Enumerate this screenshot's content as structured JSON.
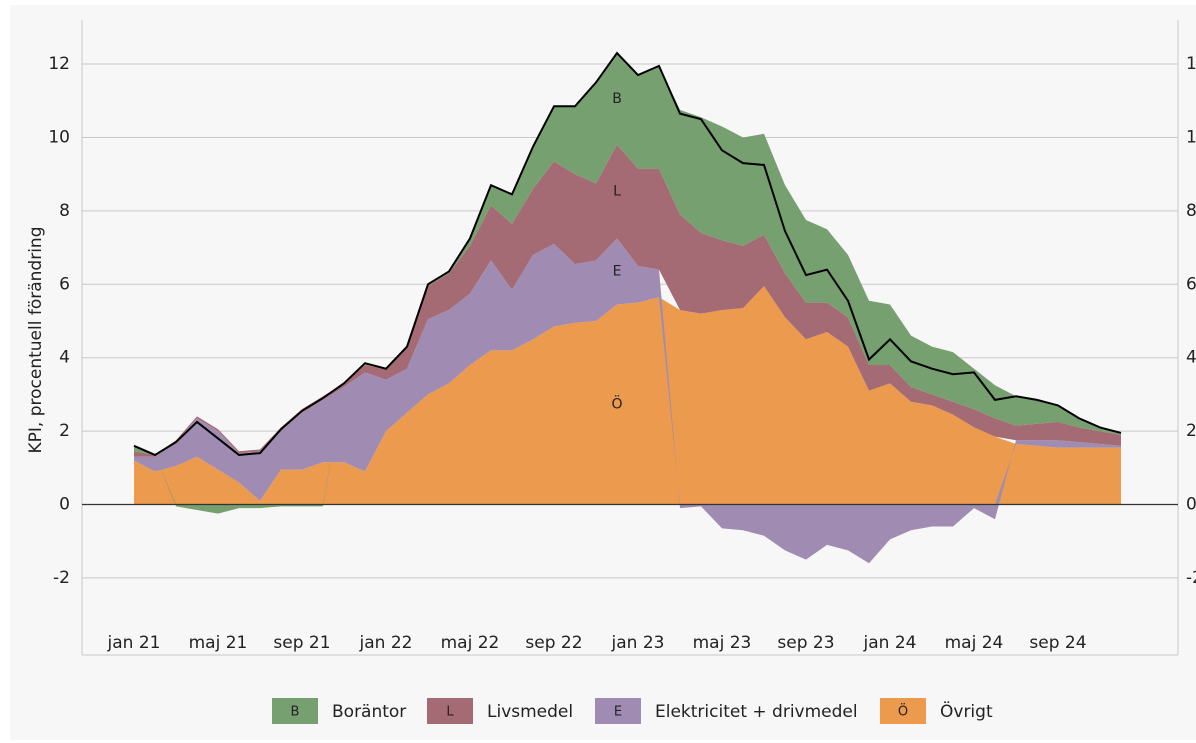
{
  "chart_data": {
    "type": "stacked_area",
    "y_label": "KPI, procentuell förändring",
    "categories": [
      "jan 21",
      null,
      null,
      null,
      "maj 21",
      null,
      null,
      null,
      "sep 21",
      null,
      null,
      null,
      "jan 22",
      null,
      null,
      null,
      "maj 22",
      null,
      null,
      null,
      "sep 22",
      null,
      null,
      null,
      "jan 23",
      null,
      null,
      null,
      "maj 23",
      null,
      null,
      null,
      "sep 23",
      null,
      null,
      null,
      "jan 24",
      null,
      null,
      null,
      "maj 24",
      null,
      null,
      null,
      "sep 24",
      null,
      null,
      null
    ],
    "series": [
      {
        "name": "Boräntor",
        "label": "B",
        "color": "#76a06f",
        "values": [
          0.15,
          0.0,
          -0.05,
          -0.15,
          -0.25,
          -0.1,
          -0.1,
          -0.05,
          -0.05,
          -0.05,
          0.0,
          0.05,
          0.0,
          0.0,
          0.05,
          0.05,
          0.2,
          0.55,
          0.8,
          1.15,
          1.5,
          1.85,
          2.75,
          2.5,
          2.55,
          2.8,
          2.85,
          3.15,
          3.1,
          2.95,
          2.75,
          2.4,
          2.25,
          2.0,
          1.7,
          1.75,
          1.65,
          1.4,
          1.3,
          1.35,
          1.1,
          0.9,
          0.8,
          0.65,
          0.45,
          0.25,
          0.1,
          0.05
        ]
      },
      {
        "name": "Livsmedel",
        "label": "L",
        "color": "#a56b74",
        "values": [
          0.15,
          0.05,
          0.05,
          0.05,
          0.05,
          0.05,
          0.05,
          0.1,
          0.1,
          0.1,
          0.1,
          0.2,
          0.3,
          0.6,
          0.9,
          1.0,
          1.3,
          1.5,
          1.8,
          1.8,
          2.25,
          2.45,
          2.1,
          2.55,
          2.65,
          2.75,
          2.6,
          2.2,
          1.9,
          1.7,
          1.4,
          1.2,
          1.0,
          0.8,
          0.8,
          0.7,
          0.5,
          0.4,
          0.3,
          0.35,
          0.5,
          0.5,
          0.4,
          0.45,
          0.5,
          0.4,
          0.35,
          0.3
        ]
      },
      {
        "name": "Elektricitet + drivmedel",
        "label": "E",
        "color": "#a08cb2",
        "values": [
          0.1,
          0.4,
          0.65,
          1.05,
          1.05,
          0.8,
          1.35,
          1.05,
          1.55,
          1.7,
          2.05,
          2.7,
          1.4,
          1.2,
          2.05,
          2.0,
          1.95,
          2.45,
          1.65,
          2.3,
          2.25,
          1.6,
          1.65,
          1.8,
          1.0,
          0.75,
          -0.1,
          -0.05,
          -0.65,
          -0.7,
          -0.85,
          -1.25,
          -1.5,
          -1.1,
          -1.25,
          -1.6,
          -0.95,
          -0.7,
          -0.6,
          -0.6,
          -0.1,
          -0.4,
          0.1,
          0.15,
          0.2,
          0.15,
          0.1,
          0.05
        ]
      },
      {
        "name": "Övrigt",
        "label": "Ö",
        "color": "#eb9a4e",
        "values": [
          1.2,
          0.9,
          1.05,
          1.3,
          0.95,
          0.6,
          0.1,
          0.95,
          0.95,
          1.15,
          1.15,
          0.9,
          2.0,
          2.5,
          3.0,
          3.3,
          3.8,
          4.2,
          4.2,
          4.5,
          4.85,
          4.95,
          5.0,
          5.45,
          5.5,
          5.65,
          5.3,
          5.2,
          5.3,
          5.35,
          5.95,
          5.1,
          4.5,
          4.7,
          4.3,
          3.1,
          3.3,
          2.8,
          2.7,
          2.45,
          2.1,
          1.85,
          1.65,
          1.6,
          1.55,
          1.55,
          1.55,
          1.55
        ]
      }
    ],
    "line": {
      "color": "#000000",
      "values": [
        1.6,
        1.35,
        1.7,
        2.25,
        1.8,
        1.35,
        1.4,
        2.05,
        2.55,
        2.9,
        3.3,
        3.85,
        3.7,
        4.3,
        6.0,
        6.35,
        7.25,
        8.7,
        8.45,
        9.75,
        10.85,
        10.85,
        11.5,
        12.3,
        11.7,
        11.95,
        10.65,
        10.5,
        9.65,
        9.3,
        9.25,
        7.45,
        6.25,
        6.4,
        5.55,
        3.95,
        4.5,
        3.9,
        3.7,
        3.55,
        3.6,
        2.85,
        2.95,
        2.85,
        2.7,
        2.35,
        2.1,
        1.95
      ]
    },
    "annotation_index": 23,
    "ylim": [
      -4.1,
      13.2
    ],
    "yticks": [
      -2,
      0,
      2,
      4,
      6,
      8,
      10,
      12
    ],
    "grid": true
  }
}
